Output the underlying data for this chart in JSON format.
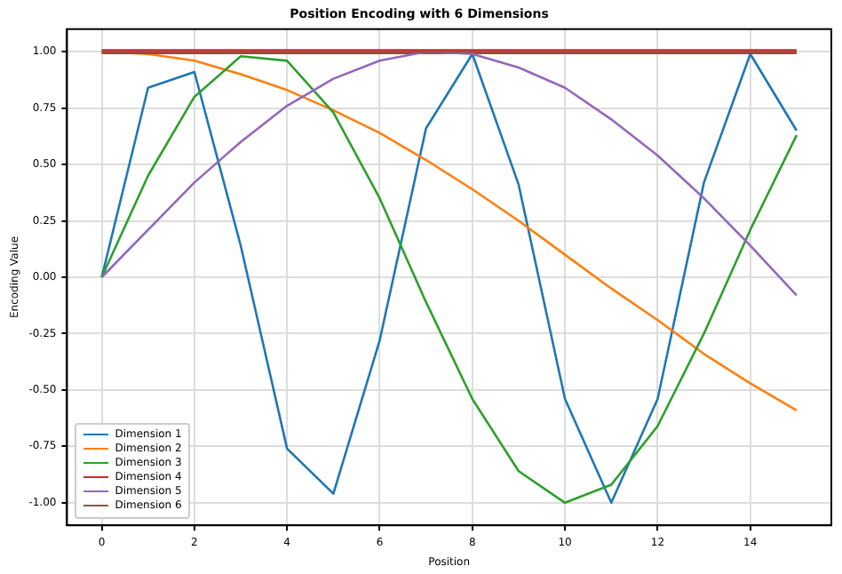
{
  "chart_data": {
    "type": "line",
    "title": "Position Encoding with 6 Dimensions",
    "xlabel": "Position",
    "ylabel": "Encoding Value",
    "x": [
      0,
      1,
      2,
      3,
      4,
      5,
      6,
      7,
      8,
      9,
      10,
      11,
      12,
      13,
      14,
      15
    ],
    "series": [
      {
        "name": "Dimension 1",
        "color": "#1f77b4",
        "values": [
          0,
          0.84,
          0.91,
          0.14,
          -0.76,
          -0.96,
          -0.28,
          0.66,
          0.99,
          0.41,
          -0.54,
          -1.0,
          -0.54,
          0.42,
          0.99,
          0.65
        ]
      },
      {
        "name": "Dimension 2",
        "color": "#ff7f0e",
        "values": [
          1.0,
          0.99,
          0.96,
          0.9,
          0.83,
          0.74,
          0.64,
          0.52,
          0.39,
          0.25,
          0.1,
          -0.05,
          -0.19,
          -0.34,
          -0.47,
          -0.59
        ]
      },
      {
        "name": "Dimension 3",
        "color": "#2ca02c",
        "values": [
          0,
          0.45,
          0.8,
          0.98,
          0.96,
          0.73,
          0.35,
          -0.11,
          -0.54,
          -0.86,
          -1.0,
          -0.92,
          -0.66,
          -0.25,
          0.21,
          0.63
        ]
      },
      {
        "name": "Dimension 4",
        "color": "#d62728",
        "values": [
          1,
          1,
          1,
          1,
          1,
          1,
          1,
          1,
          1,
          1,
          1,
          1,
          1,
          1,
          1,
          1
        ]
      },
      {
        "name": "Dimension 5",
        "color": "#9467bd",
        "values": [
          0,
          0.21,
          0.42,
          0.6,
          0.76,
          0.88,
          0.96,
          1.0,
          0.99,
          0.93,
          0.84,
          0.7,
          0.54,
          0.35,
          0.14,
          -0.08
        ]
      },
      {
        "name": "Dimension 6",
        "color": "#8c564b",
        "values": [
          1,
          1,
          1,
          1,
          1,
          1,
          1,
          1,
          1,
          1,
          1,
          1,
          1,
          1,
          1,
          1
        ]
      }
    ],
    "xlim": [
      -0.75,
      15.75
    ],
    "xticks": [
      0,
      2,
      4,
      6,
      8,
      10,
      12,
      14
    ],
    "ylim": [
      -1.1,
      1.1
    ],
    "yticks": [
      {
        "value": -1,
        "label": "-1.00"
      },
      {
        "value": -0.75,
        "label": "-0.75"
      },
      {
        "value": -0.5,
        "label": "-0.50"
      },
      {
        "value": -0.25,
        "label": "-0.25"
      },
      {
        "value": 0,
        "label": "0.00"
      },
      {
        "value": 0.25,
        "label": "0.25"
      },
      {
        "value": 0.5,
        "label": "0.50"
      },
      {
        "value": 0.75,
        "label": "0.75"
      },
      {
        "value": 1,
        "label": "1.00"
      }
    ],
    "grid": true,
    "legend": "bottom left",
    "marker": "none",
    "line_style": "solid"
  }
}
